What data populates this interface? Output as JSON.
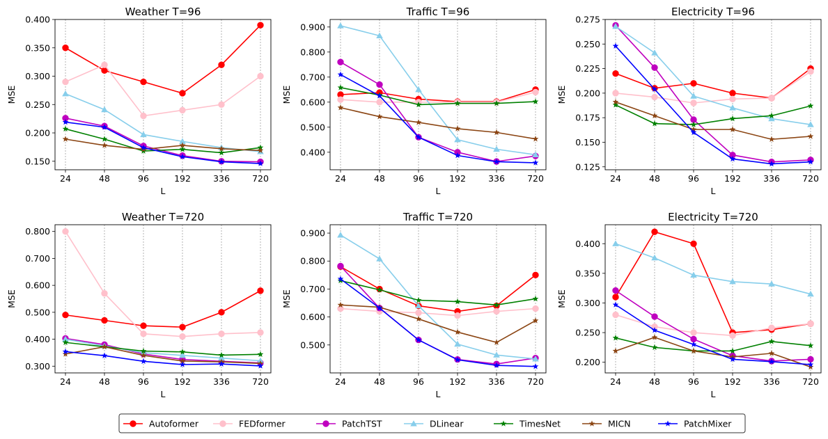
{
  "colors": {
    "Autoformer": "#ff0000",
    "FEDformer": "#ffc0cb",
    "PatchTST": "#bf00bf",
    "DLinear": "#87ceeb",
    "TimesNet": "#008000",
    "MICN": "#8b4513",
    "PatchMixer": "#0000ff"
  },
  "markers": {
    "Autoformer": "circle",
    "FEDformer": "circle",
    "PatchTST": "circle",
    "DLinear": "triangle",
    "TimesNet": "star",
    "MICN": "star",
    "PatchMixer": "star"
  },
  "legend": {
    "placement": "bottom-center",
    "entries": [
      "Autoformer",
      "FEDformer",
      "PatchTST",
      "DLinear",
      "TimesNet",
      "MICN",
      "PatchMixer"
    ]
  },
  "chart_data": [
    {
      "type": "line",
      "title": "Weather T=96",
      "xlabel": "L",
      "ylabel": "MSE",
      "categories": [
        "24",
        "48",
        "96",
        "192",
        "336",
        "720"
      ],
      "ylim": [
        0.135,
        0.4
      ],
      "yticks": [
        0.15,
        0.2,
        0.25,
        0.3,
        0.35,
        0.4
      ],
      "ytick_labels": [
        "0.150",
        "0.200",
        "0.250",
        "0.300",
        "0.350",
        "0.400"
      ],
      "vertical_grid": true,
      "series": [
        {
          "name": "Autoformer",
          "values": [
            0.35,
            0.31,
            0.29,
            0.27,
            0.32,
            0.39
          ]
        },
        {
          "name": "FEDformer",
          "values": [
            0.29,
            0.32,
            0.23,
            0.24,
            0.25,
            0.3
          ]
        },
        {
          "name": "PatchTST",
          "values": [
            0.226,
            0.212,
            0.177,
            0.16,
            0.15,
            0.149
          ]
        },
        {
          "name": "DLinear",
          "values": [
            0.269,
            0.241,
            0.197,
            0.185,
            0.174,
            0.167
          ]
        },
        {
          "name": "TimesNet",
          "values": [
            0.207,
            0.189,
            0.168,
            0.171,
            0.165,
            0.174
          ]
        },
        {
          "name": "MICN",
          "values": [
            0.189,
            0.178,
            0.171,
            0.178,
            0.172,
            0.169
          ]
        },
        {
          "name": "PatchMixer",
          "values": [
            0.219,
            0.21,
            0.174,
            0.158,
            0.149,
            0.146
          ]
        }
      ]
    },
    {
      "type": "line",
      "title": "Traffic T=96",
      "xlabel": "L",
      "ylabel": "MSE",
      "categories": [
        "24",
        "48",
        "96",
        "192",
        "336",
        "720"
      ],
      "ylim": [
        0.33,
        0.93
      ],
      "yticks": [
        0.4,
        0.5,
        0.6,
        0.7,
        0.8,
        0.9
      ],
      "ytick_labels": [
        "0.400",
        "0.500",
        "0.600",
        "0.700",
        "0.800",
        "0.900"
      ],
      "vertical_grid": true,
      "series": [
        {
          "name": "Autoformer",
          "values": [
            0.63,
            0.638,
            0.612,
            0.602,
            0.602,
            0.65
          ]
        },
        {
          "name": "FEDformer",
          "values": [
            0.61,
            0.6,
            0.6,
            0.6,
            0.6,
            0.64
          ]
        },
        {
          "name": "PatchTST",
          "values": [
            0.76,
            0.67,
            0.46,
            0.4,
            0.363,
            0.385
          ]
        },
        {
          "name": "DLinear",
          "values": [
            0.905,
            0.865,
            0.65,
            0.45,
            0.412,
            0.39
          ]
        },
        {
          "name": "TimesNet",
          "values": [
            0.658,
            0.628,
            0.59,
            0.595,
            0.595,
            0.602
          ]
        },
        {
          "name": "MICN",
          "values": [
            0.578,
            0.542,
            0.519,
            0.494,
            0.479,
            0.453
          ]
        },
        {
          "name": "PatchMixer",
          "values": [
            0.71,
            0.625,
            0.46,
            0.387,
            0.362,
            0.358
          ]
        }
      ]
    },
    {
      "type": "line",
      "title": "Electricity T=96",
      "xlabel": "L",
      "ylabel": "MSE",
      "categories": [
        "24",
        "48",
        "96",
        "192",
        "336",
        "720"
      ],
      "ylim": [
        0.122,
        0.275
      ],
      "yticks": [
        0.125,
        0.15,
        0.175,
        0.2,
        0.225,
        0.25,
        0.275
      ],
      "ytick_labels": [
        "0.125",
        "0.150",
        "0.175",
        "0.200",
        "0.225",
        "0.250",
        "0.275"
      ],
      "vertical_grid": true,
      "series": [
        {
          "name": "Autoformer",
          "values": [
            0.22,
            0.205,
            0.21,
            0.2,
            0.195,
            0.225
          ]
        },
        {
          "name": "FEDformer",
          "values": [
            0.2,
            0.196,
            0.19,
            0.194,
            0.195,
            0.222
          ]
        },
        {
          "name": "PatchTST",
          "values": [
            0.269,
            0.226,
            0.173,
            0.137,
            0.13,
            0.132
          ]
        },
        {
          "name": "DLinear",
          "values": [
            0.268,
            0.241,
            0.197,
            0.185,
            0.174,
            0.168
          ]
        },
        {
          "name": "TimesNet",
          "values": [
            0.188,
            0.169,
            0.168,
            0.174,
            0.177,
            0.187
          ]
        },
        {
          "name": "MICN",
          "values": [
            0.191,
            0.177,
            0.163,
            0.163,
            0.153,
            0.156
          ]
        },
        {
          "name": "PatchMixer",
          "values": [
            0.248,
            0.204,
            0.16,
            0.133,
            0.128,
            0.13
          ]
        }
      ]
    },
    {
      "type": "line",
      "title": "Weather T=720",
      "xlabel": "L",
      "ylabel": "MSE",
      "categories": [
        "24",
        "48",
        "96",
        "192",
        "336",
        "720"
      ],
      "ylim": [
        0.275,
        0.825
      ],
      "yticks": [
        0.3,
        0.4,
        0.5,
        0.6,
        0.7,
        0.8
      ],
      "ytick_labels": [
        "0.300",
        "0.400",
        "0.500",
        "0.600",
        "0.700",
        "0.800"
      ],
      "vertical_grid": true,
      "series": [
        {
          "name": "Autoformer",
          "values": [
            0.49,
            0.47,
            0.45,
            0.445,
            0.5,
            0.58
          ]
        },
        {
          "name": "FEDformer",
          "values": [
            0.8,
            0.57,
            0.42,
            0.41,
            0.42,
            0.425
          ]
        },
        {
          "name": "PatchTST",
          "values": [
            0.403,
            0.38,
            0.345,
            0.325,
            0.318,
            0.312
          ]
        },
        {
          "name": "DLinear",
          "values": [
            0.4,
            0.375,
            0.35,
            0.34,
            0.33,
            0.32
          ]
        },
        {
          "name": "TimesNet",
          "values": [
            0.388,
            0.372,
            0.356,
            0.353,
            0.341,
            0.344
          ]
        },
        {
          "name": "MICN",
          "values": [
            0.345,
            0.372,
            0.34,
            0.319,
            0.316,
            0.31
          ]
        },
        {
          "name": "PatchMixer",
          "values": [
            0.354,
            0.339,
            0.318,
            0.306,
            0.308,
            0.301
          ]
        }
      ]
    },
    {
      "type": "line",
      "title": "Traffic T=720",
      "xlabel": "L",
      "ylabel": "MSE",
      "categories": [
        "24",
        "48",
        "96",
        "192",
        "336",
        "720"
      ],
      "ylim": [
        0.4,
        0.93
      ],
      "yticks": [
        0.5,
        0.6,
        0.7,
        0.8,
        0.9
      ],
      "ytick_labels": [
        "0.500",
        "0.600",
        "0.700",
        "0.800",
        "0.900"
      ],
      "vertical_grid": true,
      "series": [
        {
          "name": "Autoformer",
          "values": [
            0.78,
            0.7,
            0.64,
            0.62,
            0.64,
            0.75
          ]
        },
        {
          "name": "FEDformer",
          "values": [
            0.63,
            0.62,
            0.615,
            0.605,
            0.62,
            0.63
          ]
        },
        {
          "name": "PatchTST",
          "values": [
            0.782,
            0.632,
            0.518,
            0.448,
            0.432,
            0.453
          ]
        },
        {
          "name": "DLinear",
          "values": [
            0.893,
            0.808,
            0.64,
            0.503,
            0.464,
            0.45
          ]
        },
        {
          "name": "TimesNet",
          "values": [
            0.73,
            0.697,
            0.66,
            0.655,
            0.643,
            0.665
          ]
        },
        {
          "name": "MICN",
          "values": [
            0.643,
            0.635,
            0.593,
            0.546,
            0.509,
            0.587
          ]
        },
        {
          "name": "PatchMixer",
          "values": [
            0.736,
            0.632,
            0.518,
            0.447,
            0.427,
            0.423
          ]
        }
      ]
    },
    {
      "type": "line",
      "title": "Electricity T=720",
      "xlabel": "L",
      "ylabel": "MSE",
      "categories": [
        "24",
        "48",
        "96",
        "192",
        "336",
        "720"
      ],
      "ylim": [
        0.182,
        0.432
      ],
      "yticks": [
        0.2,
        0.25,
        0.3,
        0.35,
        0.4
      ],
      "ytick_labels": [
        "0.200",
        "0.250",
        "0.300",
        "0.350",
        "0.400"
      ],
      "vertical_grid": true,
      "series": [
        {
          "name": "Autoformer",
          "values": [
            0.31,
            0.42,
            0.4,
            0.25,
            0.255,
            0.265
          ]
        },
        {
          "name": "FEDformer",
          "values": [
            0.28,
            0.26,
            0.25,
            0.245,
            0.258,
            0.265
          ]
        },
        {
          "name": "PatchTST",
          "values": [
            0.321,
            0.277,
            0.239,
            0.211,
            0.202,
            0.205
          ]
        },
        {
          "name": "DLinear",
          "values": [
            0.4,
            0.376,
            0.347,
            0.336,
            0.332,
            0.315
          ]
        },
        {
          "name": "TimesNet",
          "values": [
            0.241,
            0.225,
            0.219,
            0.219,
            0.235,
            0.228
          ]
        },
        {
          "name": "MICN",
          "values": [
            0.219,
            0.242,
            0.219,
            0.209,
            0.215,
            0.192
          ]
        },
        {
          "name": "PatchMixer",
          "values": [
            0.297,
            0.254,
            0.23,
            0.205,
            0.201,
            0.196
          ]
        }
      ]
    }
  ]
}
